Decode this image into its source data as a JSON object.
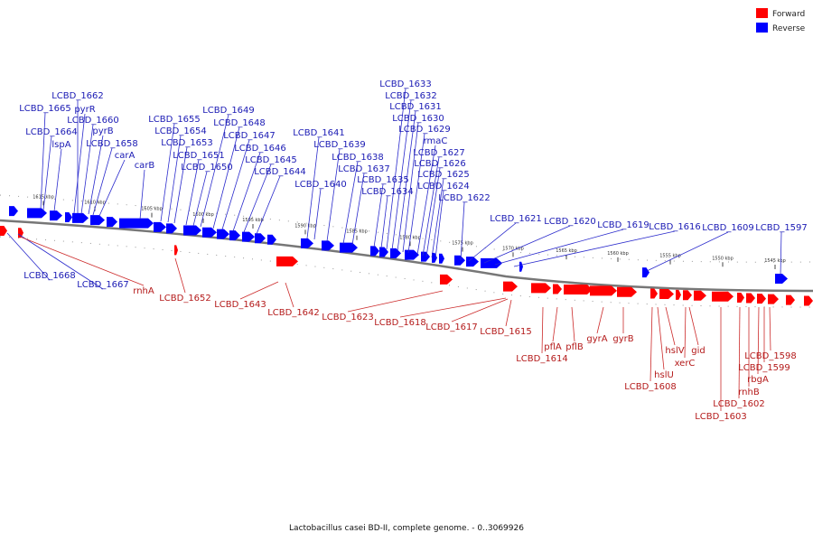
{
  "legend": {
    "forward_label": "Forward",
    "reverse_label": "Reverse",
    "forward_color": "#ff0000",
    "reverse_color": "#0000ff"
  },
  "caption": "Lactobacillus casei BD-II, complete genome. - 0..3069926",
  "ticks": [
    "1615 kbp",
    "1610 kbp",
    "1605 kbp",
    "1600 kbp",
    "1595 kbp",
    "1590 kbp",
    "1585 kbp",
    "1580 kbp",
    "1575 kbp",
    "1570 kbp",
    "1565 kbp",
    "1560 kbp",
    "1555 kbp",
    "1550 kbp",
    "1545 kbp"
  ],
  "reverse_genes": [
    "LCBD_1662",
    "LCBD_1665",
    "pyrR",
    "LCBD_1660",
    "LCBD_1664",
    "pyrB",
    "lspA",
    "LCBD_1658",
    "carA",
    "carB",
    "LCBD_1655",
    "LCBD_1654",
    "LCBD_1653",
    "LCBD_1651",
    "LCBD_1650",
    "LCBD_1649",
    "LCBD_1648",
    "LCBD_1647",
    "LCBD_1646",
    "LCBD_1645",
    "LCBD_1644",
    "LCBD_1641",
    "LCBD_1639",
    "LCBD_1638",
    "LCBD_1637",
    "LCBD_1640",
    "LCBD_1635",
    "LCBD_1634",
    "LCBD_1633",
    "LCBD_1632",
    "LCBD_1631",
    "LCBD_1630",
    "LCBD_1629",
    "rmaC",
    "LCBD_1627",
    "LCBD_1626",
    "LCBD_1625",
    "LCBD_1624",
    "LCBD_1622",
    "LCBD_1621",
    "LCBD_1620",
    "LCBD_1619",
    "LCBD_1616",
    "LCBD_1609",
    "LCBD_1597",
    "LCBD_1668",
    "LCBD_1667"
  ],
  "forward_genes": [
    "rnhA",
    "LCBD_1652",
    "LCBD_1643",
    "LCBD_1642",
    "LCBD_1623",
    "LCBD_1618",
    "LCBD_1617",
    "LCBD_1615",
    "pflA",
    "pflB",
    "LCBD_1614",
    "gyrA",
    "gyrB",
    "hslV",
    "gid",
    "xerC",
    "hslU",
    "LCBD_1608",
    "LCBD_1598",
    "LCBD_1599",
    "rbgA",
    "rnhB",
    "LCBD_1602",
    "LCBD_1603"
  ]
}
